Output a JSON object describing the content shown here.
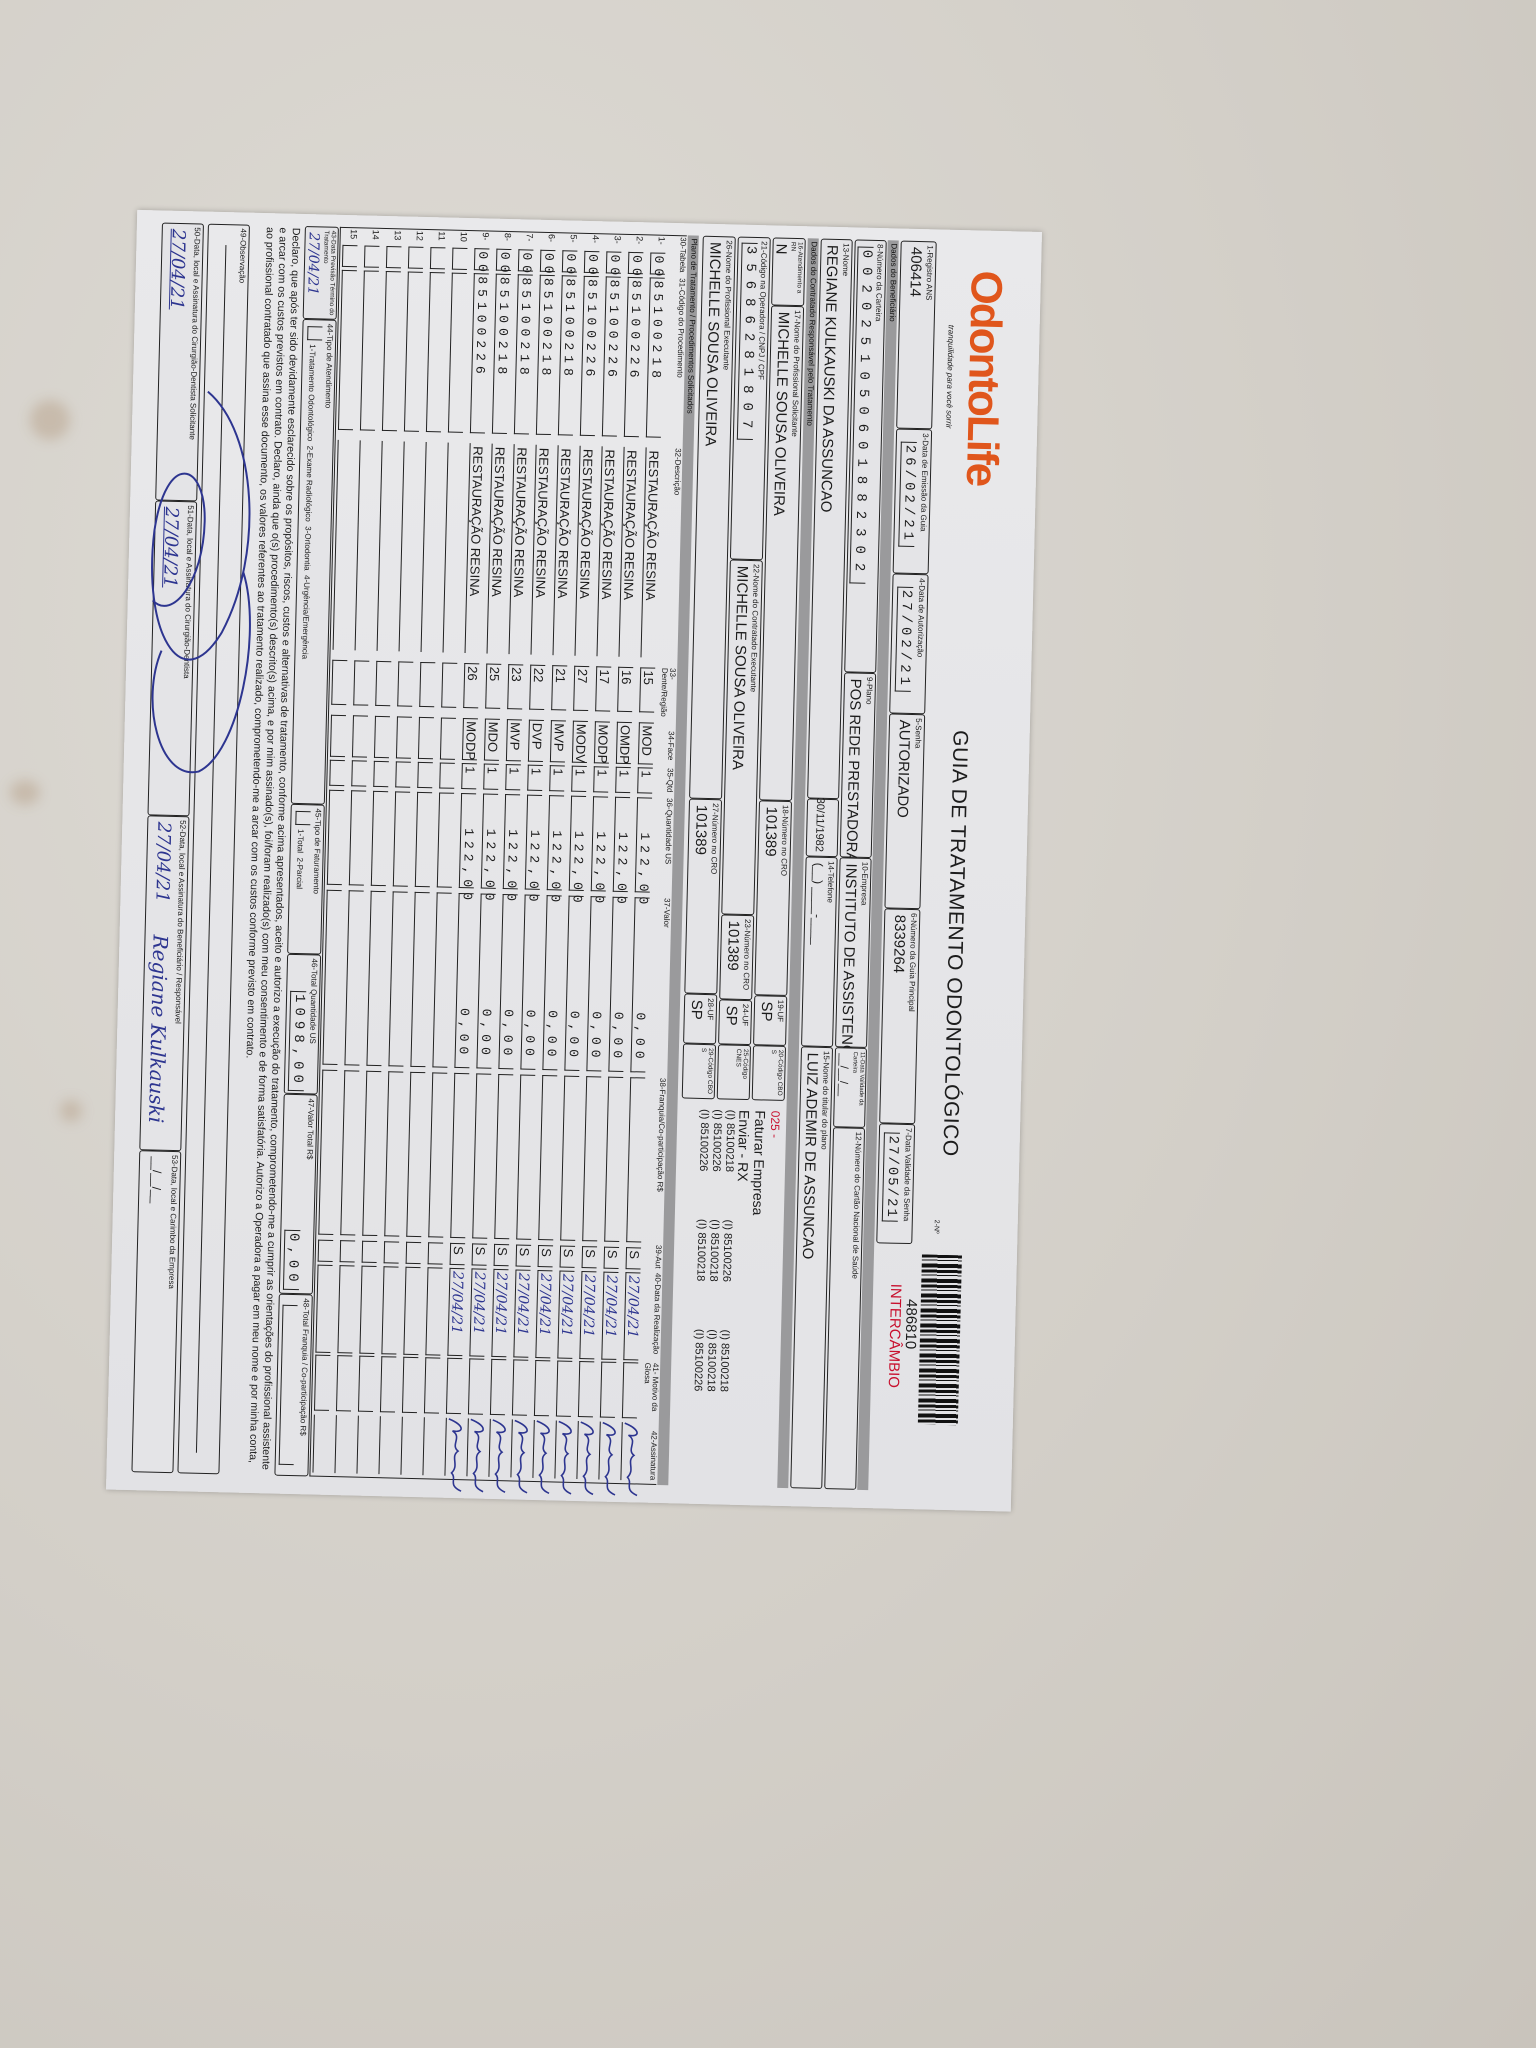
{
  "header": {
    "logo": "OdontoLife",
    "tagline": "tranquilidade para você sorrir",
    "title": "GUIA DE TRATAMENTO ODONTOLÓGICO",
    "guide_number_label": "2-Nº",
    "guide_number": "486810",
    "guide_type": "INTERCÂMBIO",
    "accent_color": "#e0561c",
    "red_color": "#c8102e"
  },
  "guide": {
    "f1": {
      "label": "1-Registro ANS",
      "value": "406414"
    },
    "f3": {
      "label": "3-Data de Emissão da Guia",
      "value": "26/02/21"
    },
    "f4": {
      "label": "4-Data de Autorização",
      "value": "27/02/21"
    },
    "f5": {
      "label": "5-Senha",
      "value": "AUTORIZADO"
    },
    "f6": {
      "label": "6-Número da Guia Principal",
      "value": "8339264"
    },
    "f7": {
      "label": "7-Data Validade da Senha",
      "value": "27/05/21"
    }
  },
  "beneficiary": {
    "section": "Dados do Beneficiário",
    "f8": {
      "label": "8-Número da Carteira",
      "value": "0020251050601882302"
    },
    "f9": {
      "label": "9-Plano",
      "value": "POS REDE PRESTADORA"
    },
    "f10": {
      "label": "10-Empresa",
      "value": "INSTITUTO DE ASSISTENCIA"
    },
    "f11": {
      "label": "11-Data Validade da Carteira",
      "value": "__/__/__"
    },
    "f12": {
      "label": "12-Número do Cartão Nacional de Saúde",
      "value": ""
    },
    "f13": {
      "label": "13-Nome",
      "value": "REGIANE KULKAUSKI DA ASSUNCAO"
    },
    "birth_date": "30/11/1982",
    "f14": {
      "label": "14-Telefone",
      "value": "(__) ____-____"
    },
    "f15": {
      "label": "15-Nome do titular do plano",
      "value": "LUIZ ADEMIR DE ASSUNCAO"
    }
  },
  "contractor": {
    "section": "Dados do Contratado Responsável pelo Tratamento",
    "f16": {
      "label": "16-Atendimento a RN",
      "value": "N"
    },
    "f17": {
      "label": "17-Nome do Profissional Solicitante",
      "value": "MICHELLE SOUSA OLIVEIRA"
    },
    "f18": {
      "label": "18-Número no CRO",
      "value": "101389"
    },
    "f19": {
      "label": "19-UF",
      "value": "SP"
    },
    "f20": {
      "label": "20-Código CBO S",
      "value": ""
    },
    "f21": {
      "label": "21-Código na Operadora / CNPJ / CPF",
      "value": "35686281807"
    },
    "f22": {
      "label": "22-Nome do Contratado Executante",
      "value": "MICHELLE SOUSA OLIVEIRA"
    },
    "f23": {
      "label": "23-Número no CRO",
      "value": "101389"
    },
    "f24": {
      "label": "24-UF",
      "value": "SP"
    },
    "f25": {
      "label": "25-Código CNES",
      "value": ""
    },
    "f26": {
      "label": "26-Nome do Profissional Executante",
      "value": "MICHELLE SOUSA OLIVEIRA"
    },
    "f27": {
      "label": "27-Número no CRO",
      "value": "101389"
    },
    "f28": {
      "label": "28-UF",
      "value": "SP"
    },
    "f29": {
      "label": "29-Código CBO S",
      "value": ""
    }
  },
  "notes": {
    "code": "025 -",
    "line1": "Faturar Empresa",
    "line2": "Enviar - RX",
    "items": [
      "(I) 85100218",
      "(I) 85100226",
      "(I) 85100226",
      "(I) 85100226",
      "(I) 85100218",
      "(I) 85100218",
      "(I) 85100218",
      "(I) 85100218",
      "(I) 85100226"
    ]
  },
  "procedures": {
    "section": "Plano de Tratamento / Procedimentos Solicitados",
    "columns": [
      "30-Tabela",
      "31-Código do Procedimento",
      "32-Descrição",
      "33-Dente/Região",
      "34-Face",
      "35-Qtd",
      "36-Quantidade US",
      "37-Valor",
      "38-Franquia/Co-participação R$",
      "39-Aut",
      "40-Data da Realização",
      "41- Motivo da Glosa",
      "42-Assinatura"
    ],
    "rows": [
      {
        "n": "1-",
        "table": "00",
        "code": "85100218",
        "desc": "RESTAURAÇÃO RESINA",
        "tooth": "15",
        "face": "MOD",
        "qty": "1",
        "us": "122,00",
        "value": "0,00",
        "aut": "S",
        "date": "27/04/21"
      },
      {
        "n": "2-",
        "table": "00",
        "code": "85100226",
        "desc": "RESTAURAÇÃO RESINA",
        "tooth": "16",
        "face": "OMDP",
        "qty": "1",
        "us": "122,00",
        "value": "0,00",
        "aut": "S",
        "date": "27/04/21"
      },
      {
        "n": "3-",
        "table": "00",
        "code": "85100226",
        "desc": "RESTAURAÇÃO RESINA",
        "tooth": "17",
        "face": "MODP",
        "qty": "1",
        "us": "122,00",
        "value": "0,00",
        "aut": "S",
        "date": "27/04/21"
      },
      {
        "n": "4-",
        "table": "00",
        "code": "85100226",
        "desc": "RESTAURAÇÃO RESINA",
        "tooth": "27",
        "face": "MODV",
        "qty": "1",
        "us": "122,00",
        "value": "0,00",
        "aut": "S",
        "date": "27/04/21"
      },
      {
        "n": "5-",
        "table": "00",
        "code": "85100218",
        "desc": "RESTAURAÇÃO RESINA",
        "tooth": "21",
        "face": "MVP",
        "qty": "1",
        "us": "122,00",
        "value": "0,00",
        "aut": "S",
        "date": "27/04/21"
      },
      {
        "n": "6-",
        "table": "00",
        "code": "85100218",
        "desc": "RESTAURAÇÃO RESINA",
        "tooth": "22",
        "face": "DVP",
        "qty": "1",
        "us": "122,00",
        "value": "0,00",
        "aut": "S",
        "date": "27/04/21"
      },
      {
        "n": "7-",
        "table": "00",
        "code": "85100218",
        "desc": "RESTAURAÇÃO RESINA",
        "tooth": "23",
        "face": "MVP",
        "qty": "1",
        "us": "122,00",
        "value": "0,00",
        "aut": "S",
        "date": "27/04/21"
      },
      {
        "n": "8-",
        "table": "00",
        "code": "85100218",
        "desc": "RESTAURAÇÃO RESINA",
        "tooth": "25",
        "face": "MDO",
        "qty": "1",
        "us": "122,00",
        "value": "0,00",
        "aut": "S",
        "date": "27/04/21"
      },
      {
        "n": "9-",
        "table": "00",
        "code": "85100226",
        "desc": "RESTAURAÇÃO RESINA",
        "tooth": "26",
        "face": "MODP",
        "qty": "1",
        "us": "122,00",
        "value": "0,00",
        "aut": "S",
        "date": "27/04/21"
      },
      {
        "n": "10"
      },
      {
        "n": "11"
      },
      {
        "n": "12"
      },
      {
        "n": "13"
      },
      {
        "n": "14"
      },
      {
        "n": "15"
      }
    ]
  },
  "totals": {
    "f43": {
      "label": "43-Data Previsão Término do Tratamento",
      "value": "27/04/21"
    },
    "f44": {
      "label": "44-Tipo de Atendimento",
      "options": "1-Tratamento Odontológico  2-Exame Radiológico  3-Ortodontia  4-Urgência/Emergência"
    },
    "f45": {
      "label": "45-Tipo de Faturamento",
      "options": "1-Total  2-Parcial"
    },
    "f46": {
      "label": "46-Total Quantidade US",
      "value": "1098,00"
    },
    "f47": {
      "label": "47-Valor Total R$",
      "value": "0,00"
    },
    "f48": {
      "label": "48-Total Franquia / Co-participação R$",
      "value": ""
    }
  },
  "declaration": "Declaro, que após ter sido devidamente esclarecido sobre os propósitos, riscos, custos e alternativas de tratamento, conforme acima apresentados, aceito e autorizo a execução do tratamento, comprometendo-me a cumprir as orientações do profissional assistente e arcar com os custos previstos em contrato. Declaro, ainda que o(s) procedimento(s) descrito(s) acima, e por mim assinado(s), foi/foram realizado(s) com meu consentimento e de forma satisfatória. Autorizo a Operadora a pagar em meu nome e por minha conta, ao profissional contratado que assina esse documento, os valores referentes ao tratamento realizado, comprometendo-me a arcar com os custos conforme previsto em contrato.",
  "observation": {
    "label": "49-Observação",
    "value": ""
  },
  "signatures": {
    "f50": {
      "label": "50-Data, local e Assinatura do Cirurgião-Dentista Solicitante",
      "date": "27/04/21"
    },
    "f51": {
      "label": "51-Data, local e Assinatura do Cirurgião-Dentista",
      "date": "27/04/21"
    },
    "f52": {
      "label": "52-Data, local e Assinatura do Beneficiário / Responsável",
      "date": "27/04/21",
      "signature": "Regiane Kulkauski"
    },
    "f53": {
      "label": "53-Data, local e Carimbo da Empresa",
      "date": "__/__/__"
    },
    "ink_color": "#2d3590"
  }
}
